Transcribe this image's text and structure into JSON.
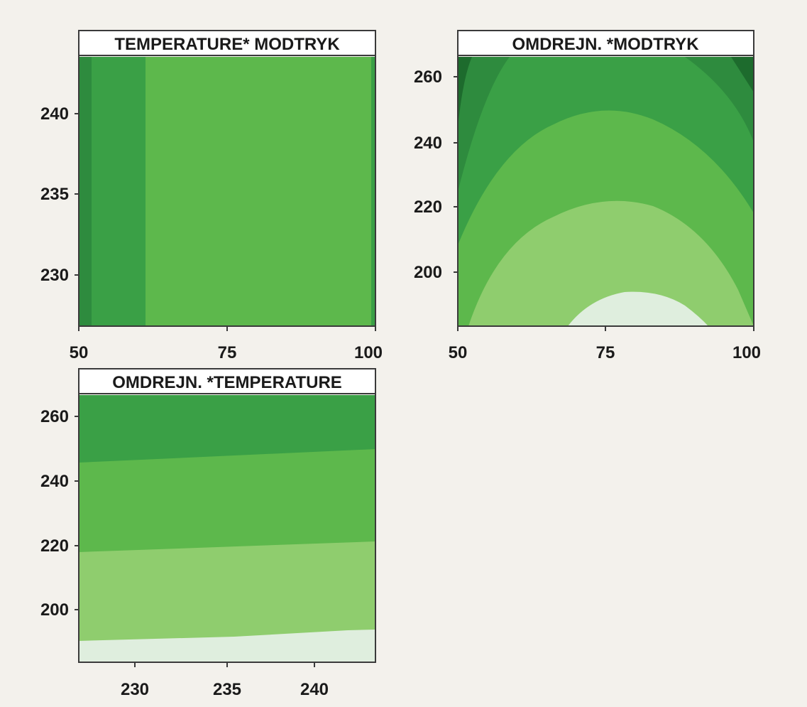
{
  "chart_data": [
    {
      "type": "contour",
      "title": "TEMPERATURE* MODTRYK",
      "xlabel": "",
      "ylabel": "",
      "x_ticks": [
        50,
        75,
        100
      ],
      "y_ticks": [
        230,
        235,
        240
      ],
      "xlim": [
        50,
        100
      ],
      "ylim": [
        226.5,
        243.5
      ],
      "bands": [
        {
          "level": 1,
          "color": "#2e8b3e",
          "x": [
            50,
            52
          ]
        },
        {
          "level": 2,
          "color": "#3aa046",
          "x": [
            52,
            60.5
          ]
        },
        {
          "level": 3,
          "color": "#5db84c",
          "x": [
            60.5,
            99.5
          ]
        },
        {
          "level": 2,
          "color": "#3aa046",
          "x": [
            99.5,
            100
          ]
        }
      ]
    },
    {
      "type": "contour",
      "title": "OMDREJN. *MODTRYK",
      "xlabel": "",
      "ylabel": "",
      "x_ticks": [
        50,
        75,
        100
      ],
      "y_ticks": [
        200,
        220,
        240,
        260
      ],
      "xlim": [
        50,
        100
      ],
      "ylim": [
        183,
        267
      ],
      "bands": [
        {
          "level": 0,
          "color": "#1d6b2d",
          "description": "darkest, top corners"
        },
        {
          "level": 1,
          "color": "#2e8b3e"
        },
        {
          "level": 2,
          "color": "#3aa046"
        },
        {
          "level": 3,
          "color": "#5db84c"
        },
        {
          "level": 4,
          "color": "#8fcd6e"
        },
        {
          "level": 5,
          "color": "#dfeede",
          "description": "lightest, bottom center near x=80"
        }
      ]
    },
    {
      "type": "contour",
      "title": "OMDREJN. *TEMPERATURE",
      "xlabel": "",
      "ylabel": "",
      "x_ticks": [
        230,
        235,
        240
      ],
      "y_ticks": [
        200,
        220,
        240,
        260
      ],
      "xlim": [
        226.5,
        243.5
      ],
      "ylim": [
        183,
        267
      ],
      "bands": [
        {
          "level": 2,
          "color": "#3aa046",
          "y_left": [
            246,
            267
          ],
          "y_right": [
            250,
            267
          ]
        },
        {
          "level": 3,
          "color": "#5db84c",
          "y_left": [
            218,
            246
          ],
          "y_right": [
            221,
            250
          ]
        },
        {
          "level": 4,
          "color": "#8fcd6e",
          "y_left": [
            190,
            218
          ],
          "y_right": [
            193,
            221
          ]
        },
        {
          "level": 5,
          "color": "#dfeede",
          "y_left": [
            183,
            190
          ],
          "y_right": [
            183,
            193
          ]
        }
      ]
    }
  ]
}
